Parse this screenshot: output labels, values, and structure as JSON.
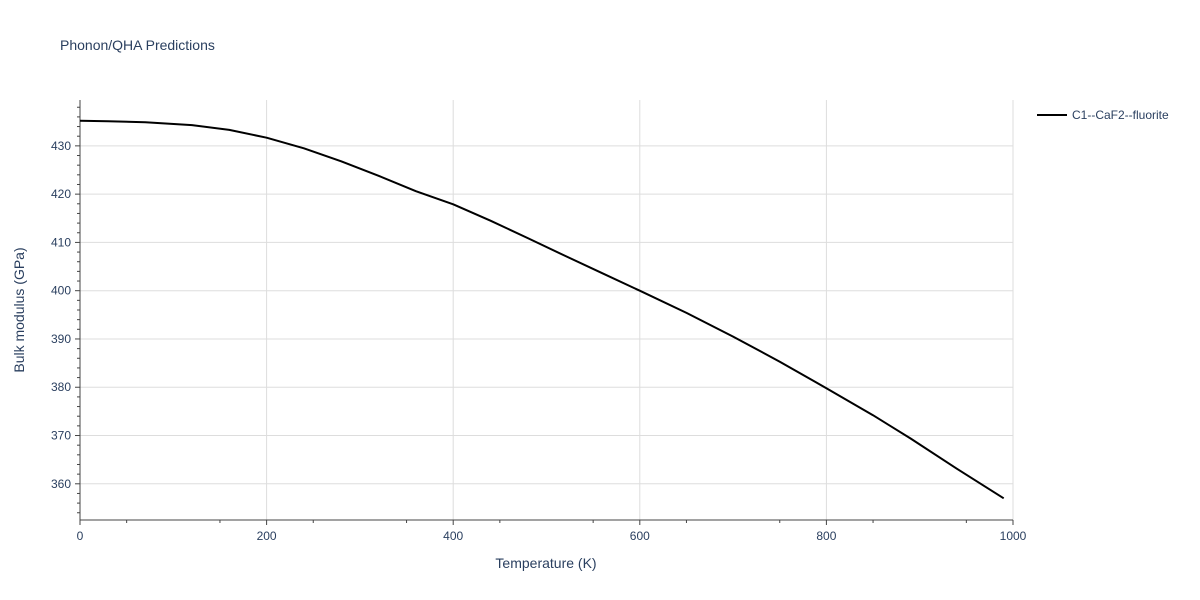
{
  "chart_data": {
    "type": "line",
    "title": "Phonon/QHA Predictions",
    "xlabel": "Temperature (K)",
    "ylabel": "Bulk modulus (GPa)",
    "xlim": [
      0,
      1000
    ],
    "ylim": [
      352.5,
      439.5
    ],
    "xticks": [
      0,
      200,
      400,
      600,
      800,
      1000
    ],
    "yticks": [
      360,
      370,
      380,
      390,
      400,
      410,
      420,
      430
    ],
    "grid": true,
    "legend_position": "top-right",
    "series": [
      {
        "name": "C1--CaF2--fluorite",
        "color": "#000000",
        "x": [
          0,
          30,
          70,
          120,
          160,
          200,
          240,
          280,
          320,
          360,
          400,
          440,
          480,
          520,
          560,
          600,
          650,
          700,
          750,
          800,
          850,
          890,
          940,
          990
        ],
        "y": [
          435.2,
          435.1,
          434.9,
          434.3,
          433.3,
          431.7,
          429.5,
          426.8,
          423.8,
          420.6,
          417.9,
          414.5,
          410.9,
          407.2,
          403.6,
          400.0,
          395.4,
          390.5,
          385.3,
          379.8,
          374.2,
          369.4,
          363.1,
          357.0
        ]
      }
    ]
  }
}
